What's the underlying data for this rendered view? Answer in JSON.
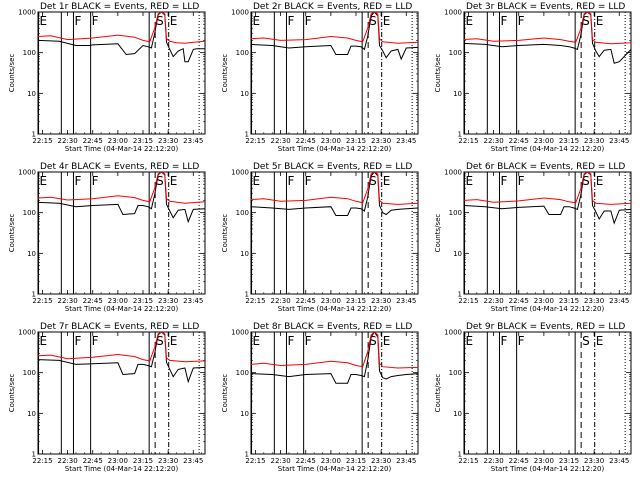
{
  "figure": {
    "colors": {
      "events": "#000000",
      "lld": "#ff0000",
      "background": "#ffffff"
    },
    "xlabel": "Start Time (04-Mar-14 22:12:20)",
    "ylabel": "Counts/sec",
    "x_tick_labels": [
      "22:15",
      "22:30",
      "22:45",
      "23:00",
      "23:15",
      "23:30",
      "23:45"
    ],
    "y_tick_labels": [
      "1",
      "10",
      "100",
      "1000"
    ],
    "markers": [
      {
        "label": "E",
        "time": "22:12:40",
        "style": "solid"
      },
      {
        "label": "F",
        "time": "22:33:30",
        "style": "solid"
      },
      {
        "label": "F",
        "time": "22:43:45",
        "style": "solid"
      },
      {
        "label": "S",
        "time": "23:22:15",
        "style": "dashed"
      },
      {
        "label": "E",
        "time": "23:30:20",
        "style": "dash-dot"
      }
    ],
    "solid_lines_unlabeled": [
      "22:26:15",
      "23:18:40"
    ],
    "dotted_line": "23:48:30"
  },
  "chart_data": [
    {
      "type": "line",
      "title": "Det 1r BLACK = Events, RED = LLD",
      "xlim": [
        "22:12:20",
        "23:52:00"
      ],
      "ylim": [
        1,
        1000
      ],
      "yscale": "log",
      "series": [
        {
          "name": "BLACK = Events",
          "x": [
            "22:12",
            "22:25",
            "22:35",
            "22:43",
            "22:45",
            "23:00",
            "23:05",
            "23:10",
            "23:15",
            "23:18",
            "23:20",
            "23:22",
            "23:24",
            "23:26",
            "23:28",
            "23:29",
            "23:31",
            "23:33",
            "23:36",
            "23:39",
            "23:40",
            "23:42",
            "23:45",
            "23:47",
            "23:52"
          ],
          "y": [
            200,
            190,
            150,
            150,
            155,
            165,
            90,
            95,
            150,
            140,
            130,
            300,
            850,
            1000,
            850,
            180,
            120,
            80,
            110,
            125,
            60,
            60,
            120,
            125,
            125
          ]
        },
        {
          "name": "RED = LLD",
          "x": [
            "22:12",
            "22:20",
            "22:30",
            "22:45",
            "23:00",
            "23:10",
            "23:15",
            "23:19",
            "23:22",
            "23:24",
            "23:26",
            "23:28",
            "23:29",
            "23:31",
            "23:35",
            "23:40",
            "23:45",
            "23:52"
          ],
          "y": [
            250,
            260,
            210,
            230,
            270,
            240,
            200,
            185,
            400,
            900,
            1000,
            900,
            220,
            190,
            175,
            170,
            180,
            190
          ]
        }
      ]
    },
    {
      "type": "line",
      "title": "Det 2r BLACK = Events, RED = LLD",
      "xlim": [
        "22:12:20",
        "23:52:00"
      ],
      "ylim": [
        1,
        1000
      ],
      "yscale": "log",
      "series": [
        {
          "name": "BLACK = Events",
          "x": [
            "22:12",
            "22:25",
            "22:35",
            "22:45",
            "23:00",
            "23:03",
            "23:10",
            "23:12",
            "23:15",
            "23:18",
            "23:20",
            "23:22",
            "23:24",
            "23:26",
            "23:28",
            "23:29",
            "23:31",
            "23:33",
            "23:36",
            "23:40",
            "23:42",
            "23:45",
            "23:52"
          ],
          "y": [
            160,
            150,
            130,
            140,
            150,
            90,
            90,
            145,
            145,
            140,
            120,
            250,
            800,
            1000,
            800,
            150,
            110,
            75,
            110,
            120,
            70,
            130,
            135
          ]
        },
        {
          "name": "RED = LLD",
          "x": [
            "22:12",
            "22:20",
            "22:30",
            "22:45",
            "23:00",
            "23:10",
            "23:15",
            "23:19",
            "23:22",
            "23:24",
            "23:26",
            "23:28",
            "23:29",
            "23:31",
            "23:40",
            "23:52"
          ],
          "y": [
            220,
            230,
            200,
            210,
            250,
            230,
            200,
            185,
            400,
            900,
            1000,
            900,
            220,
            185,
            170,
            180
          ]
        }
      ]
    },
    {
      "type": "line",
      "title": "Det 3r BLACK = Events, RED = LLD",
      "xlim": [
        "22:12:20",
        "23:52:00"
      ],
      "ylim": [
        1,
        1000
      ],
      "yscale": "log",
      "series": [
        {
          "name": "BLACK = Events",
          "x": [
            "22:12",
            "22:25",
            "22:35",
            "22:45",
            "23:00",
            "23:10",
            "23:15",
            "23:18",
            "23:20",
            "23:22",
            "23:24",
            "23:26",
            "23:28",
            "23:29",
            "23:31",
            "23:33",
            "23:36",
            "23:40",
            "23:42",
            "23:45",
            "23:52"
          ],
          "y": [
            170,
            160,
            140,
            150,
            160,
            150,
            140,
            130,
            120,
            260,
            850,
            1000,
            850,
            170,
            110,
            80,
            115,
            120,
            55,
            60,
            120
          ]
        },
        {
          "name": "RED = LLD",
          "x": [
            "22:12",
            "22:20",
            "22:30",
            "22:45",
            "23:00",
            "23:10",
            "23:15",
            "23:19",
            "23:22",
            "23:24",
            "23:26",
            "23:28",
            "23:29",
            "23:31",
            "23:40",
            "23:52"
          ],
          "y": [
            210,
            220,
            190,
            200,
            230,
            210,
            190,
            180,
            380,
            900,
            1000,
            900,
            210,
            180,
            165,
            175
          ]
        }
      ]
    },
    {
      "type": "line",
      "title": "Det 4r BLACK = Events, RED = LLD",
      "xlim": [
        "22:12:20",
        "23:52:00"
      ],
      "ylim": [
        1,
        1000
      ],
      "yscale": "log",
      "series": [
        {
          "name": "BLACK = Events",
          "x": [
            "22:12",
            "22:25",
            "22:35",
            "22:45",
            "23:00",
            "23:03",
            "23:10",
            "23:12",
            "23:15",
            "23:18",
            "23:20",
            "23:22",
            "23:24",
            "23:26",
            "23:28",
            "23:29",
            "23:31",
            "23:33",
            "23:36",
            "23:40",
            "23:42",
            "23:45",
            "23:52"
          ],
          "y": [
            180,
            170,
            140,
            150,
            160,
            90,
            95,
            150,
            150,
            140,
            125,
            280,
            850,
            1000,
            850,
            160,
            110,
            75,
            115,
            120,
            60,
            120,
            125
          ]
        },
        {
          "name": "RED = LLD",
          "x": [
            "22:12",
            "22:20",
            "22:30",
            "22:45",
            "23:00",
            "23:10",
            "23:15",
            "23:19",
            "23:22",
            "23:24",
            "23:26",
            "23:28",
            "23:29",
            "23:31",
            "23:40",
            "23:52"
          ],
          "y": [
            230,
            240,
            205,
            220,
            260,
            235,
            200,
            185,
            400,
            900,
            1000,
            900,
            220,
            190,
            170,
            185
          ]
        }
      ]
    },
    {
      "type": "line",
      "title": "Det 5r BLACK = Events, RED = LLD",
      "xlim": [
        "22:12:20",
        "23:52:00"
      ],
      "ylim": [
        1,
        1000
      ],
      "yscale": "log",
      "series": [
        {
          "name": "BLACK = Events",
          "x": [
            "22:12",
            "22:25",
            "22:35",
            "22:45",
            "23:00",
            "23:03",
            "23:10",
            "23:12",
            "23:15",
            "23:18",
            "23:20",
            "23:22",
            "23:24",
            "23:26",
            "23:28",
            "23:29",
            "23:31",
            "23:33",
            "23:36",
            "23:40",
            "23:45",
            "23:52"
          ],
          "y": [
            140,
            130,
            120,
            130,
            140,
            85,
            85,
            130,
            130,
            125,
            110,
            240,
            800,
            1000,
            800,
            150,
            100,
            90,
            115,
            120,
            125,
            130
          ]
        },
        {
          "name": "RED = LLD",
          "x": [
            "22:12",
            "22:20",
            "22:30",
            "22:45",
            "23:00",
            "23:10",
            "23:15",
            "23:19",
            "23:22",
            "23:24",
            "23:26",
            "23:28",
            "23:29",
            "23:31",
            "23:40",
            "23:52"
          ],
          "y": [
            210,
            220,
            190,
            200,
            240,
            220,
            190,
            175,
            380,
            900,
            1000,
            900,
            200,
            170,
            160,
            170
          ]
        }
      ]
    },
    {
      "type": "line",
      "title": "Det 6r BLACK = Events, RED = LLD",
      "xlim": [
        "22:12:20",
        "23:52:00"
      ],
      "ylim": [
        1,
        1000
      ],
      "yscale": "log",
      "series": [
        {
          "name": "BLACK = Events",
          "x": [
            "22:12",
            "22:25",
            "22:35",
            "22:45",
            "23:00",
            "23:03",
            "23:10",
            "23:12",
            "23:15",
            "23:18",
            "23:20",
            "23:22",
            "23:24",
            "23:26",
            "23:28",
            "23:29",
            "23:31",
            "23:33",
            "23:36",
            "23:40",
            "23:42",
            "23:45",
            "23:52"
          ],
          "y": [
            150,
            140,
            125,
            135,
            145,
            90,
            90,
            140,
            140,
            130,
            120,
            260,
            850,
            1000,
            850,
            150,
            105,
            70,
            110,
            110,
            55,
            115,
            120
          ]
        },
        {
          "name": "RED = LLD",
          "x": [
            "22:12",
            "22:20",
            "22:30",
            "22:45",
            "23:00",
            "23:10",
            "23:15",
            "23:19",
            "23:22",
            "23:24",
            "23:26",
            "23:28",
            "23:29",
            "23:31",
            "23:40",
            "23:52"
          ],
          "y": [
            200,
            210,
            180,
            195,
            230,
            210,
            185,
            175,
            380,
            900,
            1000,
            900,
            200,
            170,
            160,
            170
          ]
        }
      ]
    },
    {
      "type": "line",
      "title": "Det 7r BLACK = Events, RED = LLD",
      "xlim": [
        "22:12:20",
        "23:52:00"
      ],
      "ylim": [
        1,
        1000
      ],
      "yscale": "log",
      "series": [
        {
          "name": "BLACK = Events",
          "x": [
            "22:12",
            "22:25",
            "22:35",
            "22:45",
            "23:00",
            "23:03",
            "23:10",
            "23:12",
            "23:15",
            "23:18",
            "23:20",
            "23:22",
            "23:24",
            "23:26",
            "23:28",
            "23:29",
            "23:31",
            "23:33",
            "23:36",
            "23:40",
            "23:42",
            "23:45",
            "23:52"
          ],
          "y": [
            210,
            200,
            160,
            165,
            175,
            90,
            95,
            160,
            160,
            150,
            140,
            300,
            850,
            1000,
            850,
            180,
            120,
            80,
            120,
            130,
            60,
            130,
            135
          ]
        },
        {
          "name": "RED = LLD",
          "x": [
            "22:12",
            "22:20",
            "22:30",
            "22:45",
            "23:00",
            "23:10",
            "23:15",
            "23:19",
            "23:22",
            "23:24",
            "23:26",
            "23:28",
            "23:29",
            "23:31",
            "23:40",
            "23:52"
          ],
          "y": [
            260,
            270,
            220,
            240,
            280,
            250,
            210,
            195,
            420,
            900,
            1000,
            900,
            230,
            200,
            185,
            195
          ]
        }
      ]
    },
    {
      "type": "line",
      "title": "Det 8r BLACK = Events, RED = LLD",
      "xlim": [
        "22:12:20",
        "23:52:00"
      ],
      "ylim": [
        1,
        1000
      ],
      "yscale": "log",
      "series": [
        {
          "name": "BLACK = Events",
          "x": [
            "22:12",
            "22:25",
            "22:35",
            "22:45",
            "23:00",
            "23:03",
            "23:10",
            "23:12",
            "23:15",
            "23:18",
            "23:20",
            "23:22",
            "23:24",
            "23:26",
            "23:28",
            "23:29",
            "23:31",
            "23:33",
            "23:36",
            "23:40",
            "23:45",
            "23:52"
          ],
          "y": [
            95,
            90,
            80,
            90,
            95,
            55,
            55,
            90,
            90,
            85,
            80,
            200,
            750,
            1000,
            750,
            110,
            75,
            70,
            80,
            85,
            90,
            95
          ]
        },
        {
          "name": "RED = LLD",
          "x": [
            "22:12",
            "22:20",
            "22:30",
            "22:45",
            "23:00",
            "23:10",
            "23:15",
            "23:19",
            "23:22",
            "23:24",
            "23:26",
            "23:28",
            "23:29",
            "23:31",
            "23:40",
            "23:52"
          ],
          "y": [
            160,
            170,
            150,
            160,
            190,
            175,
            150,
            140,
            330,
            850,
            1000,
            850,
            170,
            140,
            130,
            135
          ]
        }
      ]
    },
    {
      "type": "line",
      "title": "Det 9r BLACK = Events, RED = LLD",
      "xlim": [
        "22:12:20",
        "23:52:00"
      ],
      "ylim": [
        1,
        1000
      ],
      "yscale": "log",
      "series": []
    }
  ]
}
